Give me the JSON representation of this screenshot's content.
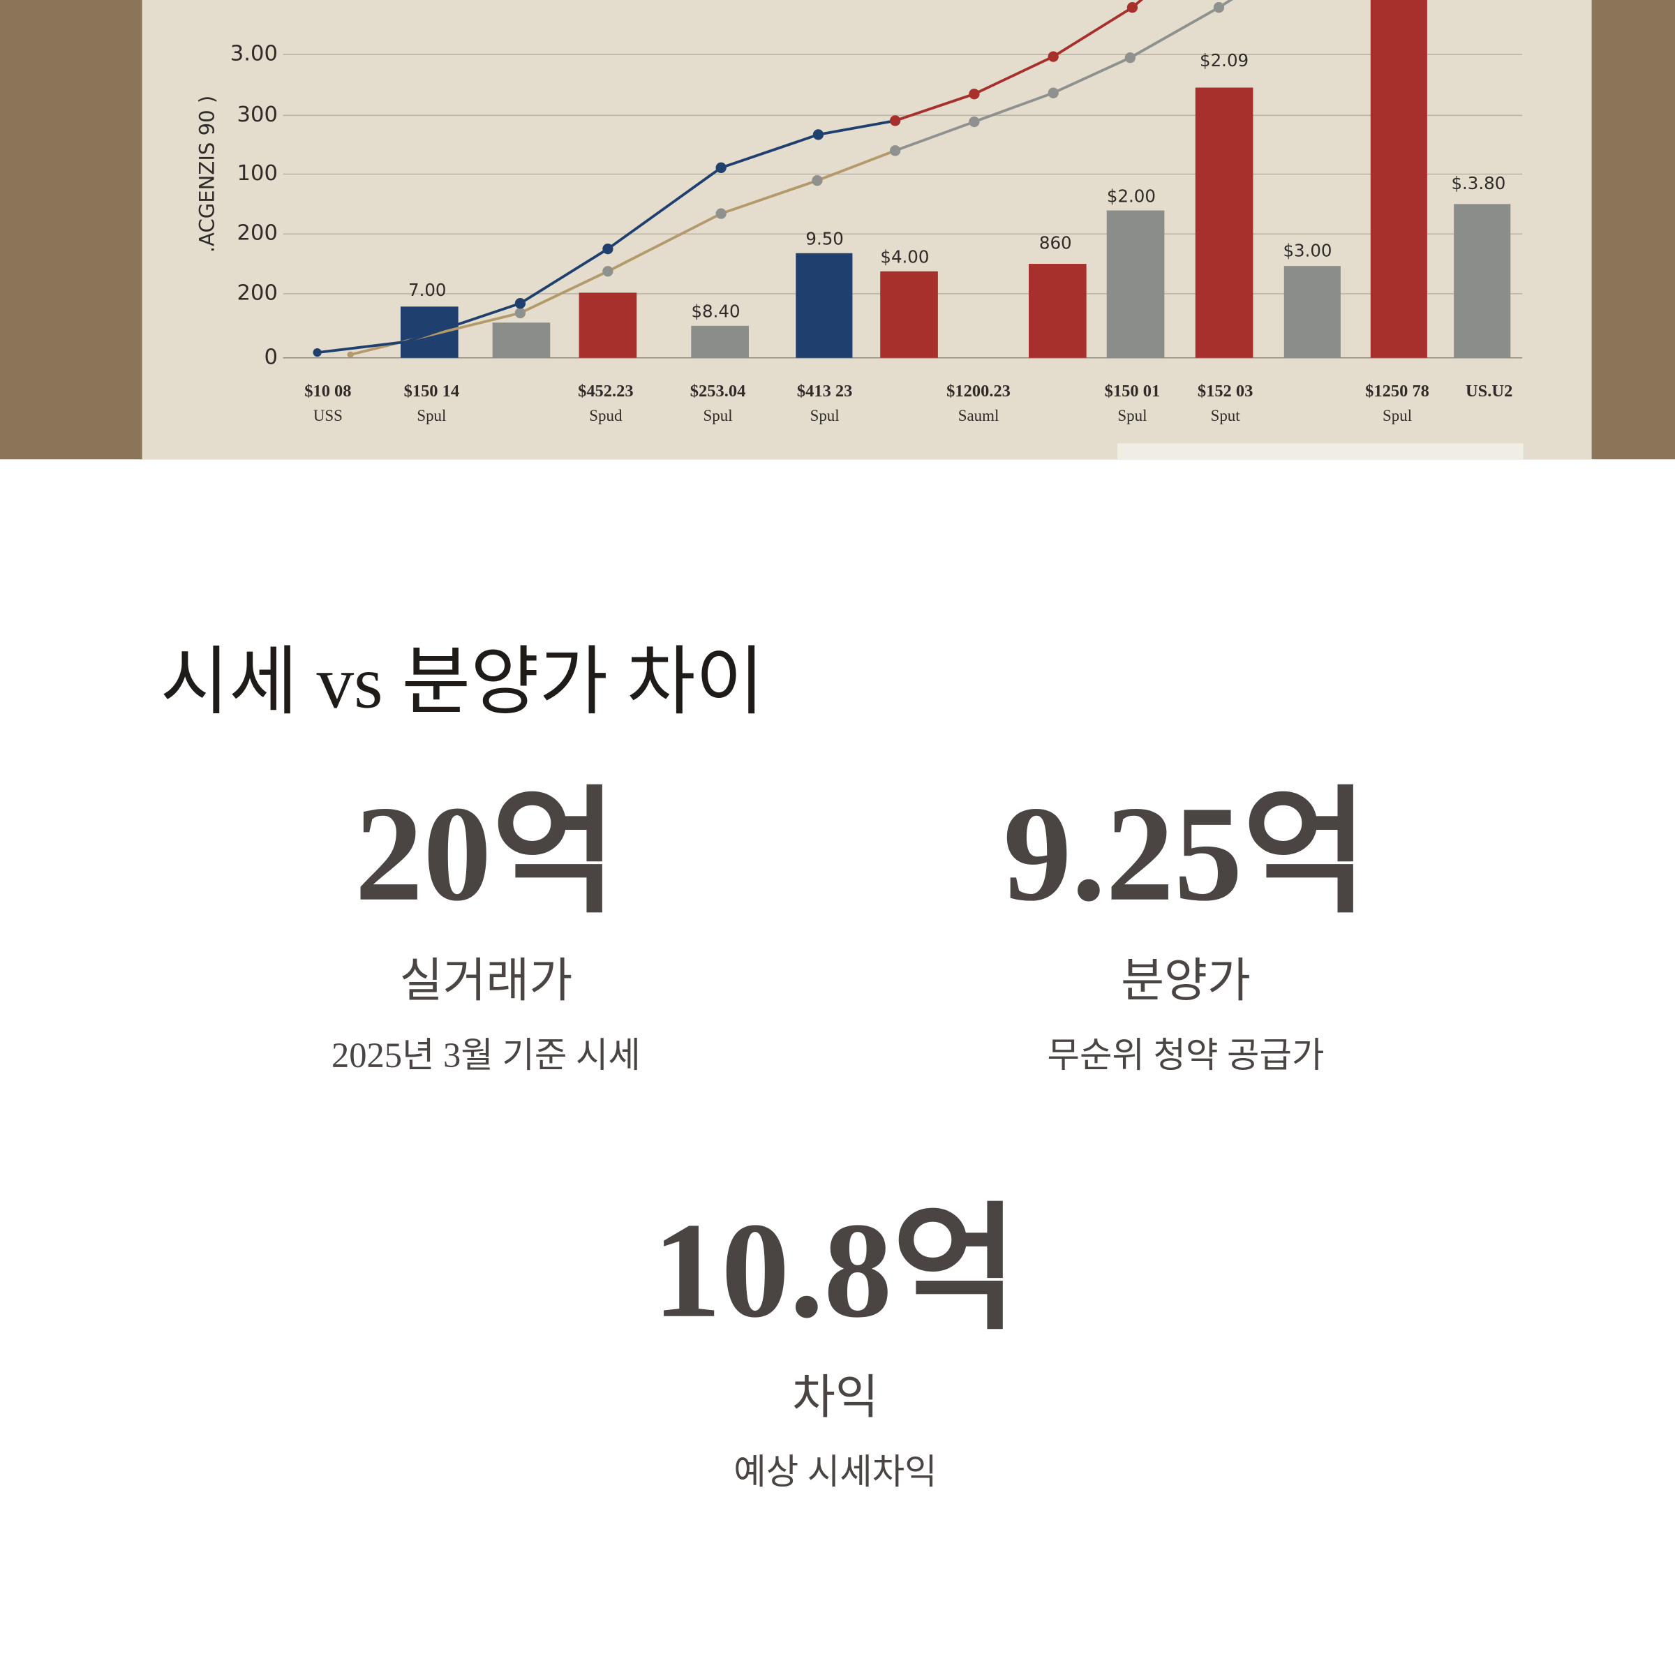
{
  "hero_image": {
    "axis_label": ".ACGENZIS 90 )",
    "y_labels": [
      "3.00",
      "300",
      "100",
      "200",
      "200",
      "0"
    ],
    "bar_labels": [
      "7.00",
      "$8.40",
      "9.50",
      "$4.00",
      "860",
      "$2.00",
      "$2.09",
      "$3.00",
      "$.3.80"
    ],
    "x_labels": [
      {
        "amount": "$10 08",
        "unit": "USS"
      },
      {
        "amount": "$150 14",
        "unit": "Spul"
      },
      {
        "amount": "$452.23",
        "unit": "Spud"
      },
      {
        "amount": "$253.04",
        "unit": "Spul"
      },
      {
        "amount": "$413 23",
        "unit": "Spul"
      },
      {
        "amount": "$1200.23",
        "unit": "Sauml"
      },
      {
        "amount": "$150 01",
        "unit": "Spul"
      },
      {
        "amount": "$152 03",
        "unit": "Sput"
      },
      {
        "amount": "$1250 78",
        "unit": "Spul"
      },
      {
        "amount": "US.U2"
      }
    ]
  },
  "section": {
    "title": "시세 vs 분양가 차이",
    "stats": [
      {
        "value": "20억",
        "label": "실거래가",
        "note": "2025년 3월 기준 시세"
      },
      {
        "value": "9.25억",
        "label": "분양가",
        "note": "무순위 청약 공급가"
      },
      {
        "value": "10.8억",
        "label": "차익",
        "note": "예상 시세차익"
      }
    ]
  }
}
